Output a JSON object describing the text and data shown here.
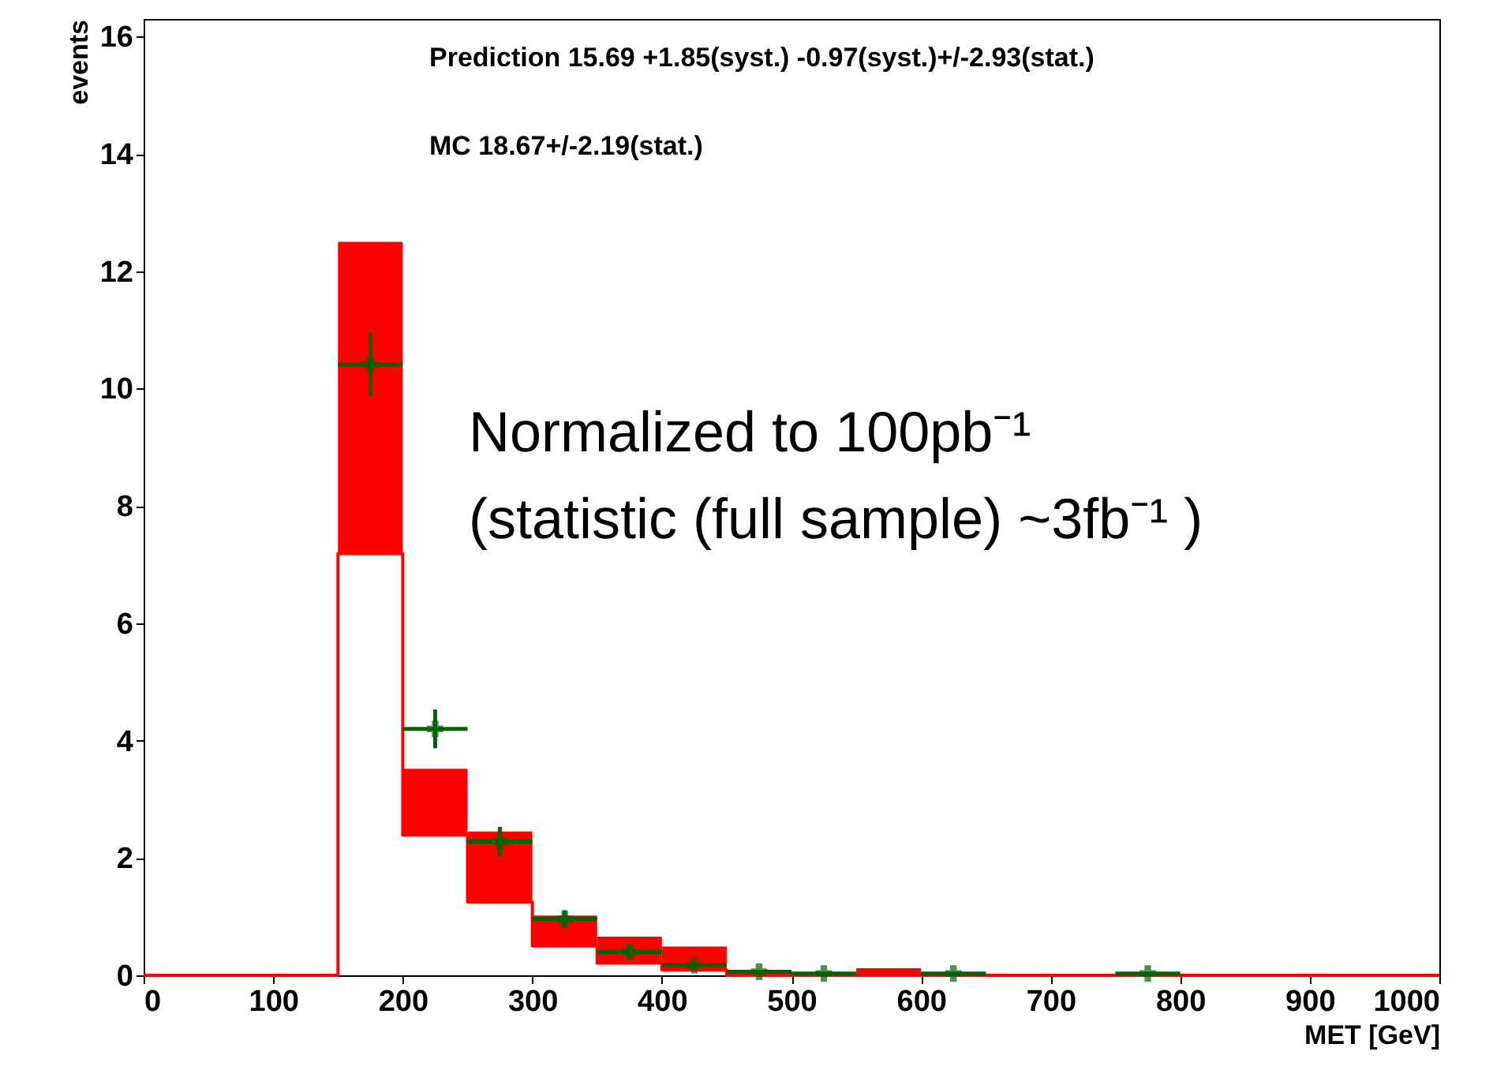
{
  "chart_data": {
    "type": "bar",
    "ylabel": "events",
    "xlabel": "MET [GeV]",
    "x": [
      175,
      225,
      275,
      325,
      375,
      425,
      475,
      525,
      575,
      625,
      675,
      725,
      775
    ],
    "xlim": [
      0,
      1000
    ],
    "xticks": [
      0,
      100,
      200,
      300,
      400,
      500,
      600,
      700,
      800,
      900,
      1000
    ],
    "ylim": [
      0,
      16.3
    ],
    "yticks": [
      0,
      2,
      4,
      6,
      8,
      10,
      12,
      14,
      16
    ],
    "grid": false,
    "annotations": [
      "Prediction  15.69 +1.85(syst.) -0.97(syst.)+/-2.93(stat.)",
      "MC          18.67+/-2.19(stat.)",
      "Normalized to 100pb⁻¹",
      "(statistic (full sample) ~3fb⁻¹ )"
    ],
    "series": [
      {
        "color": "#ff0000",
        "base": [
          7.19,
          2.39,
          1.25,
          0.5,
          0.21,
          0.09,
          null,
          null,
          0,
          null,
          null,
          null,
          null
        ],
        "values": [
          5.31,
          1.13,
          1.2,
          0.52,
          0.45,
          0.4,
          null,
          null,
          0.12,
          null,
          null,
          null,
          null
        ]
      },
      {
        "type": "step",
        "color": "#ff0000",
        "line_style": "solid",
        "x": [
          0,
          50,
          100,
          150,
          200,
          250,
          300,
          350,
          400,
          450,
          500,
          550,
          600,
          650,
          700,
          750,
          800,
          850,
          900,
          950,
          1000
        ],
        "values": [
          0,
          0,
          0,
          7.19,
          2.39,
          1.25,
          0.5,
          0.21,
          0.09,
          0,
          0,
          0,
          0,
          0,
          0,
          0,
          0,
          0,
          0,
          0,
          0
        ]
      },
      {
        "type": "scatter",
        "color": "#006400",
        "marker": "cross",
        "values": [
          10.41,
          4.2,
          2.28,
          0.96,
          0.4,
          0.17,
          0.06,
          0.03,
          null,
          0.03,
          null,
          null,
          0.03
        ],
        "errors": [
          0.54,
          0.33,
          0.25,
          0.15,
          0.1,
          null,
          null,
          null,
          null,
          null,
          null,
          null,
          null
        ],
        "xerrors": [
          25,
          25,
          25,
          25,
          25,
          25,
          25,
          25,
          null,
          25,
          null,
          null,
          25
        ]
      }
    ]
  }
}
